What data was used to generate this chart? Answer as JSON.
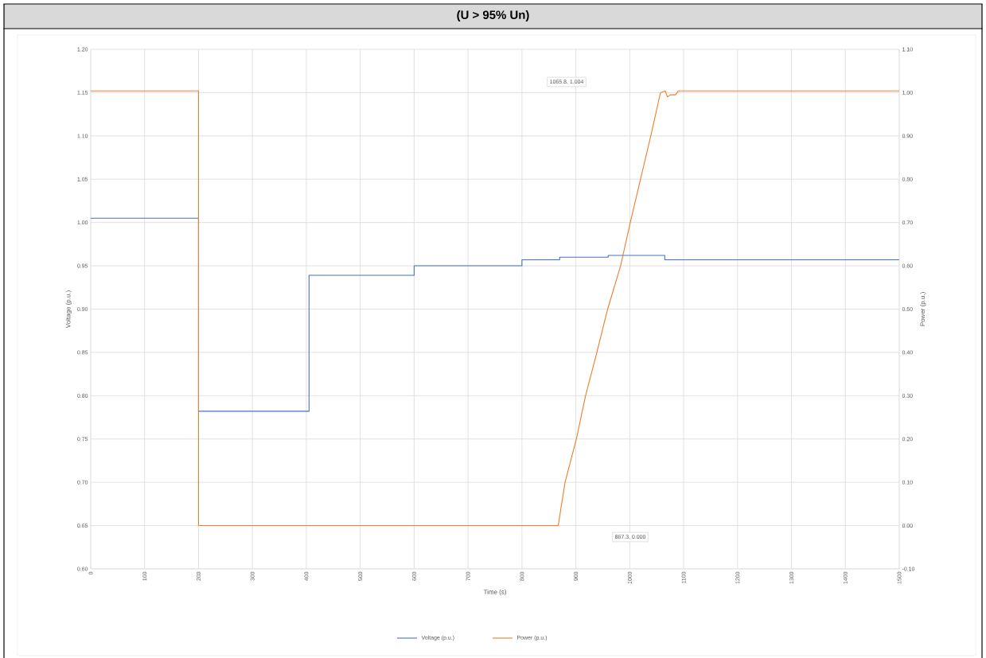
{
  "chart_data": {
    "type": "line",
    "title": "(U > 95% Un)",
    "xlabel": "Time (s)",
    "ylabel": "Voltage (p.u.)",
    "y2label": "Power (p.u.)",
    "xlim": [
      0,
      1500
    ],
    "xticks": [
      0,
      100,
      200,
      300,
      400,
      500,
      600,
      700,
      800,
      900,
      1000,
      1100,
      1200,
      1300,
      1400,
      1500
    ],
    "ylim": [
      0.6,
      1.2
    ],
    "yticks": [
      {
        "value": 0.6,
        "label": "0.60"
      },
      {
        "value": 0.65,
        "label": "0.65"
      },
      {
        "value": 0.7,
        "label": "0.70"
      },
      {
        "value": 0.75,
        "label": "0.75"
      },
      {
        "value": 0.8,
        "label": "0.80"
      },
      {
        "value": 0.85,
        "label": "0.85"
      },
      {
        "value": 0.9,
        "label": "0.90"
      },
      {
        "value": 0.95,
        "label": "0.95"
      },
      {
        "value": 1.0,
        "label": "1.00"
      },
      {
        "value": 1.05,
        "label": "1.05"
      },
      {
        "value": 1.1,
        "label": "1.10"
      },
      {
        "value": 1.15,
        "label": "1.15"
      },
      {
        "value": 1.2,
        "label": "1.20"
      }
    ],
    "y2lim": [
      -0.1,
      1.1
    ],
    "y2ticks": [
      {
        "value": -0.1,
        "label": "-0.10"
      },
      {
        "value": 0.0,
        "label": "0.00"
      },
      {
        "value": 0.1,
        "label": "0.10"
      },
      {
        "value": 0.2,
        "label": "0.20"
      },
      {
        "value": 0.3,
        "label": "0.30"
      },
      {
        "value": 0.4,
        "label": "0.40"
      },
      {
        "value": 0.5,
        "label": "0.50"
      },
      {
        "value": 0.6,
        "label": "0.60"
      },
      {
        "value": 0.7,
        "label": "0.70"
      },
      {
        "value": 0.8,
        "label": "0.80"
      },
      {
        "value": 0.9,
        "label": "0.90"
      },
      {
        "value": 1.0,
        "label": "1.00"
      },
      {
        "value": 1.1,
        "label": "1.10"
      }
    ],
    "grid": true,
    "legend": "bottom",
    "marker": "none",
    "line_style": "solid",
    "series": [
      {
        "name": "Voltage (p.u.)",
        "color": "#4472c4",
        "type": "step",
        "x": [
          0,
          200,
          405,
          600,
          800,
          870,
          960,
          1065,
          1500
        ],
        "values": [
          1.005,
          0.782,
          0.939,
          0.95,
          0.957,
          0.96,
          0.962,
          0.957,
          0.957
        ]
      },
      {
        "name": "Power (p.u.)",
        "color": "#ed7d31",
        "type": "line",
        "axis": "y2",
        "x": [
          0,
          200,
          200,
          867.3,
          880,
          901,
          918,
          939,
          959,
          983,
          1001,
          1020,
          1039,
          1057,
          1065.8,
          1070,
          1075,
          1085,
          1090,
          1500
        ],
        "values": [
          1.004,
          1.004,
          0.0,
          0.0,
          0.1,
          0.2,
          0.3,
          0.4,
          0.5,
          0.6,
          0.7,
          0.8,
          0.9,
          1.0,
          1.004,
          0.99,
          0.995,
          0.995,
          1.004,
          1.004
        ]
      }
    ],
    "annotations": [
      "1065.8, 1.004",
      "867.3, 0.000"
    ]
  }
}
